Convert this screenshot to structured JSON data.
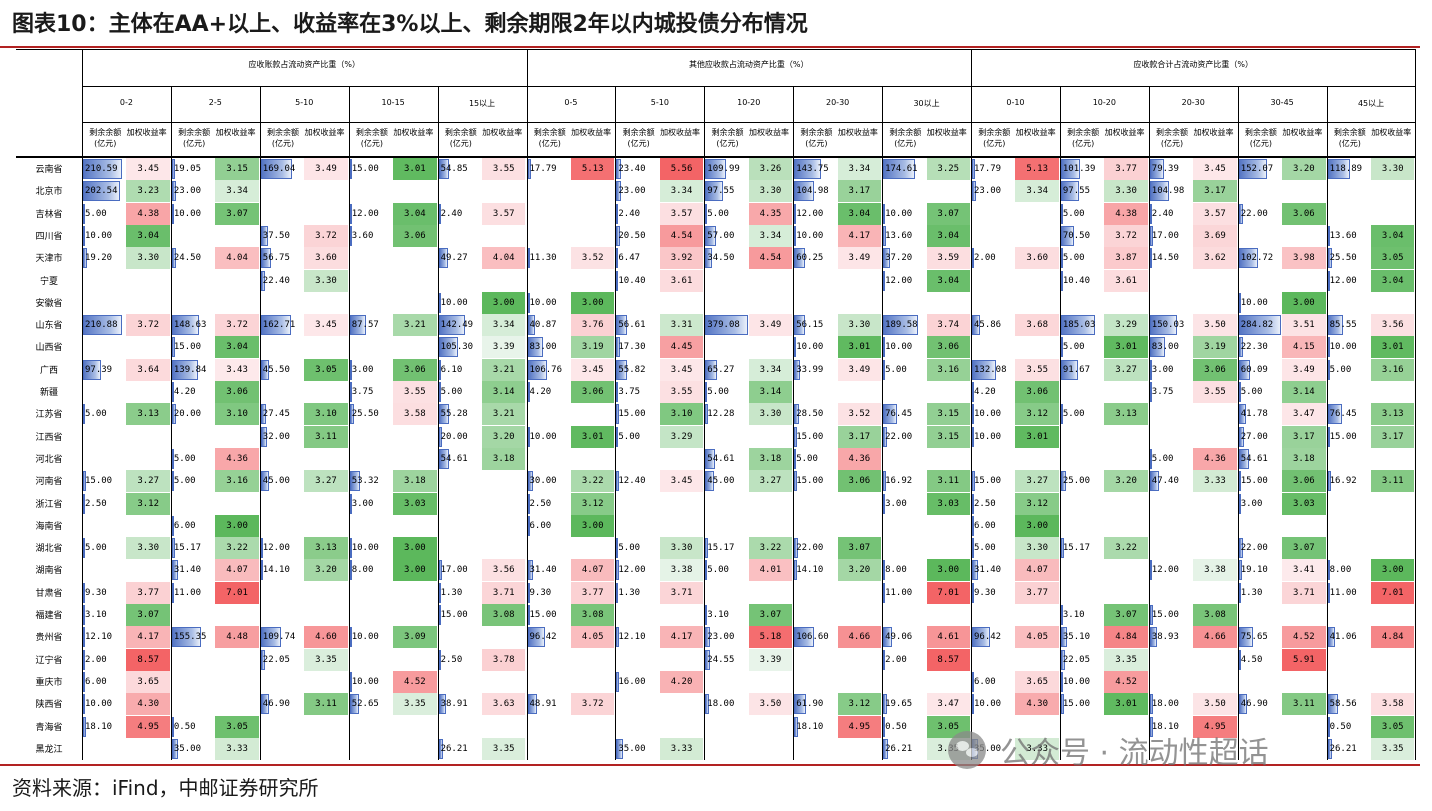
{
  "title": "图表10：主体在AA+以上、收益率在3%以上、剩余期限2年以内城投债分布情况",
  "source": "资料来源：iFind，中邮证券研究所",
  "watermark": "公众号 · 流动性超话",
  "colors": {
    "rule": "#b22222",
    "bar": "#5676c4",
    "green_max": "#5cb85c",
    "red_max": "#f36a6a"
  },
  "metric_labels": {
    "balance": "剩余余额(亿元)",
    "yield": "加权收益率"
  },
  "groups": [
    {
      "label": "应收账款占流动资产比重（%）",
      "bands": [
        "0-2",
        "2-5",
        "5-10",
        "10-15",
        "15以上"
      ]
    },
    {
      "label": "其他应收款占流动资产比重（%）",
      "bands": [
        "0-5",
        "5-10",
        "10-20",
        "20-30",
        "30以上"
      ]
    },
    {
      "label": "应收款合计占流动资产比重（%）",
      "bands": [
        "0-10",
        "10-20",
        "20-30",
        "30-45",
        "45以上"
      ]
    }
  ],
  "provinces": [
    "云南省",
    "北京市",
    "吉林省",
    "四川省",
    "天津市",
    "宁夏",
    "安徽省",
    "山东省",
    "山西省",
    "广西",
    "新疆",
    "江苏省",
    "江西省",
    "河北省",
    "河南省",
    "浙江省",
    "海南省",
    "湖北省",
    "湖南省",
    "甘肃省",
    "福建省",
    "贵州省",
    "辽宁省",
    "重庆市",
    "陕西省",
    "青海省",
    "黑龙江"
  ],
  "rows": [
    [
      [
        "210.59",
        "3.45"
      ],
      [
        "19.05",
        "3.15"
      ],
      [
        "169.04",
        "3.49"
      ],
      [
        "15.00",
        "3.01"
      ],
      [
        "54.85",
        "3.55"
      ],
      [
        "17.79",
        "5.13"
      ],
      [
        "23.40",
        "5.56"
      ],
      [
        "109.99",
        "3.26"
      ],
      [
        "143.75",
        "3.34"
      ],
      [
        "174.61",
        "3.25"
      ],
      [
        "17.79",
        "5.13"
      ],
      [
        "101.39",
        "3.77"
      ],
      [
        "79.39",
        "3.45"
      ],
      [
        "152.07",
        "3.20"
      ],
      [
        "118.89",
        "3.30"
      ]
    ],
    [
      [
        "202.54",
        "3.23"
      ],
      [
        "23.00",
        "3.34"
      ],
      null,
      null,
      null,
      null,
      [
        "23.00",
        "3.34"
      ],
      [
        "97.55",
        "3.30"
      ],
      [
        "104.98",
        "3.17"
      ],
      null,
      [
        "23.00",
        "3.34"
      ],
      [
        "97.55",
        "3.30"
      ],
      [
        "104.98",
        "3.17"
      ],
      null,
      null
    ],
    [
      [
        "5.00",
        "4.38"
      ],
      [
        "10.00",
        "3.07"
      ],
      null,
      [
        "12.00",
        "3.04"
      ],
      [
        "2.40",
        "3.57"
      ],
      null,
      [
        "2.40",
        "3.57"
      ],
      [
        "5.00",
        "4.35"
      ],
      [
        "12.00",
        "3.04"
      ],
      [
        "10.00",
        "3.07"
      ],
      null,
      [
        "5.00",
        "4.38"
      ],
      [
        "2.40",
        "3.57"
      ],
      [
        "22.00",
        "3.06"
      ],
      null
    ],
    [
      [
        "10.00",
        "3.04"
      ],
      null,
      [
        "37.50",
        "3.72"
      ],
      [
        "3.60",
        "3.06"
      ],
      null,
      null,
      [
        "20.50",
        "4.54"
      ],
      [
        "57.00",
        "3.34"
      ],
      [
        "10.00",
        "4.17"
      ],
      [
        "13.60",
        "3.04"
      ],
      null,
      [
        "70.50",
        "3.72"
      ],
      [
        "17.00",
        "3.69"
      ],
      null,
      [
        "13.60",
        "3.04"
      ]
    ],
    [
      [
        "19.20",
        "3.30"
      ],
      [
        "24.50",
        "4.04"
      ],
      [
        "56.75",
        "3.60"
      ],
      null,
      [
        "49.27",
        "4.04"
      ],
      [
        "11.30",
        "3.52"
      ],
      [
        "6.47",
        "3.92"
      ],
      [
        "34.50",
        "4.54"
      ],
      [
        "60.25",
        "3.49"
      ],
      [
        "37.20",
        "3.59"
      ],
      [
        "2.00",
        "3.60"
      ],
      [
        "5.00",
        "3.87"
      ],
      [
        "14.50",
        "3.62"
      ],
      [
        "102.72",
        "3.98"
      ],
      [
        "25.50",
        "3.05"
      ]
    ],
    [
      null,
      null,
      [
        "22.40",
        "3.30"
      ],
      null,
      null,
      null,
      [
        "10.40",
        "3.61"
      ],
      null,
      null,
      [
        "12.00",
        "3.04"
      ],
      null,
      [
        "10.40",
        "3.61"
      ],
      null,
      null,
      [
        "12.00",
        "3.04"
      ]
    ],
    [
      null,
      null,
      null,
      null,
      [
        "10.00",
        "3.00"
      ],
      [
        "10.00",
        "3.00"
      ],
      null,
      null,
      null,
      null,
      null,
      null,
      null,
      [
        "10.00",
        "3.00"
      ],
      null
    ],
    [
      [
        "210.88",
        "3.72"
      ],
      [
        "148.63",
        "3.72"
      ],
      [
        "162.71",
        "3.45"
      ],
      [
        "87.57",
        "3.21"
      ],
      [
        "142.49",
        "3.34"
      ],
      [
        "40.87",
        "3.76"
      ],
      [
        "56.61",
        "3.31"
      ],
      [
        "379.08",
        "3.49"
      ],
      [
        "56.15",
        "3.30"
      ],
      [
        "189.58",
        "3.74"
      ],
      [
        "45.86",
        "3.68"
      ],
      [
        "185.03",
        "3.29"
      ],
      [
        "150.03",
        "3.50"
      ],
      [
        "284.82",
        "3.51"
      ],
      [
        "85.55",
        "3.56"
      ]
    ],
    [
      null,
      [
        "15.00",
        "3.04"
      ],
      null,
      null,
      [
        "105.30",
        "3.39"
      ],
      [
        "83.00",
        "3.19"
      ],
      [
        "17.30",
        "4.45"
      ],
      null,
      [
        "10.00",
        "3.01"
      ],
      [
        "10.00",
        "3.06"
      ],
      null,
      [
        "5.00",
        "3.01"
      ],
      [
        "83.00",
        "3.19"
      ],
      [
        "22.30",
        "4.15"
      ],
      [
        "10.00",
        "3.01"
      ]
    ],
    [
      [
        "97.39",
        "3.64"
      ],
      [
        "139.84",
        "3.43"
      ],
      [
        "45.50",
        "3.05"
      ],
      [
        "3.00",
        "3.06"
      ],
      [
        "6.10",
        "3.21"
      ],
      [
        "106.76",
        "3.45"
      ],
      [
        "55.82",
        "3.45"
      ],
      [
        "65.27",
        "3.34"
      ],
      [
        "33.99",
        "3.49"
      ],
      [
        "5.00",
        "3.16"
      ],
      [
        "132.08",
        "3.55"
      ],
      [
        "91.67",
        "3.27"
      ],
      [
        "3.00",
        "3.06"
      ],
      [
        "60.09",
        "3.49"
      ],
      [
        "5.00",
        "3.16"
      ]
    ],
    [
      null,
      [
        "4.20",
        "3.06"
      ],
      null,
      [
        "3.75",
        "3.55"
      ],
      [
        "5.00",
        "3.14"
      ],
      [
        "4.20",
        "3.06"
      ],
      [
        "3.75",
        "3.55"
      ],
      [
        "5.00",
        "3.14"
      ],
      null,
      null,
      [
        "4.20",
        "3.06"
      ],
      null,
      [
        "3.75",
        "3.55"
      ],
      [
        "5.00",
        "3.14"
      ],
      null
    ],
    [
      [
        "5.00",
        "3.13"
      ],
      [
        "20.00",
        "3.10"
      ],
      [
        "27.45",
        "3.10"
      ],
      [
        "25.50",
        "3.58"
      ],
      [
        "55.28",
        "3.21"
      ],
      null,
      [
        "15.00",
        "3.10"
      ],
      [
        "12.28",
        "3.30"
      ],
      [
        "28.50",
        "3.52"
      ],
      [
        "76.45",
        "3.15"
      ],
      [
        "10.00",
        "3.12"
      ],
      [
        "5.00",
        "3.13"
      ],
      null,
      [
        "41.78",
        "3.47"
      ],
      [
        "76.45",
        "3.13"
      ]
    ],
    [
      null,
      null,
      [
        "32.00",
        "3.11"
      ],
      null,
      [
        "20.00",
        "3.20"
      ],
      [
        "10.00",
        "3.01"
      ],
      [
        "5.00",
        "3.29"
      ],
      null,
      [
        "15.00",
        "3.17"
      ],
      [
        "22.00",
        "3.15"
      ],
      [
        "10.00",
        "3.01"
      ],
      null,
      null,
      [
        "27.00",
        "3.17"
      ],
      [
        "15.00",
        "3.17"
      ]
    ],
    [
      null,
      [
        "5.00",
        "4.36"
      ],
      null,
      null,
      [
        "54.61",
        "3.18"
      ],
      null,
      null,
      [
        "54.61",
        "3.18"
      ],
      [
        "5.00",
        "4.36"
      ],
      null,
      null,
      null,
      [
        "5.00",
        "4.36"
      ],
      [
        "54.61",
        "3.18"
      ],
      null
    ],
    [
      [
        "15.00",
        "3.27"
      ],
      [
        "5.00",
        "3.16"
      ],
      [
        "45.00",
        "3.27"
      ],
      [
        "53.32",
        "3.18"
      ],
      null,
      [
        "30.00",
        "3.22"
      ],
      [
        "12.40",
        "3.45"
      ],
      [
        "45.00",
        "3.27"
      ],
      [
        "15.00",
        "3.06"
      ],
      [
        "16.92",
        "3.11"
      ],
      [
        "15.00",
        "3.27"
      ],
      [
        "25.00",
        "3.20"
      ],
      [
        "47.40",
        "3.33"
      ],
      [
        "15.00",
        "3.06"
      ],
      [
        "16.92",
        "3.11"
      ]
    ],
    [
      [
        "2.50",
        "3.12"
      ],
      null,
      null,
      [
        "3.00",
        "3.03"
      ],
      null,
      [
        "2.50",
        "3.12"
      ],
      null,
      null,
      null,
      [
        "3.00",
        "3.03"
      ],
      [
        "2.50",
        "3.12"
      ],
      null,
      null,
      [
        "3.00",
        "3.03"
      ],
      null
    ],
    [
      null,
      [
        "6.00",
        "3.00"
      ],
      null,
      null,
      null,
      [
        "6.00",
        "3.00"
      ],
      null,
      null,
      null,
      null,
      [
        "6.00",
        "3.00"
      ],
      null,
      null,
      null,
      null
    ],
    [
      [
        "5.00",
        "3.30"
      ],
      [
        "15.17",
        "3.22"
      ],
      [
        "12.00",
        "3.13"
      ],
      [
        "10.00",
        "3.00"
      ],
      null,
      null,
      [
        "5.00",
        "3.30"
      ],
      [
        "15.17",
        "3.22"
      ],
      [
        "22.00",
        "3.07"
      ],
      null,
      [
        "5.00",
        "3.30"
      ],
      [
        "15.17",
        "3.22"
      ],
      null,
      [
        "22.00",
        "3.07"
      ],
      null
    ],
    [
      null,
      [
        "31.40",
        "4.07"
      ],
      [
        "14.10",
        "3.20"
      ],
      [
        "8.00",
        "3.00"
      ],
      [
        "17.00",
        "3.56"
      ],
      [
        "31.40",
        "4.07"
      ],
      [
        "12.00",
        "3.38"
      ],
      [
        "5.00",
        "4.01"
      ],
      [
        "14.10",
        "3.20"
      ],
      [
        "8.00",
        "3.00"
      ],
      [
        "31.40",
        "4.07"
      ],
      null,
      [
        "12.00",
        "3.38"
      ],
      [
        "19.10",
        "3.41"
      ],
      [
        "8.00",
        "3.00"
      ]
    ],
    [
      [
        "9.30",
        "3.77"
      ],
      [
        "11.00",
        "7.01"
      ],
      null,
      null,
      [
        "1.30",
        "3.71"
      ],
      [
        "9.30",
        "3.77"
      ],
      [
        "1.30",
        "3.71"
      ],
      null,
      null,
      [
        "11.00",
        "7.01"
      ],
      [
        "9.30",
        "3.77"
      ],
      null,
      null,
      [
        "1.30",
        "3.71"
      ],
      [
        "11.00",
        "7.01"
      ]
    ],
    [
      [
        "3.10",
        "3.07"
      ],
      null,
      null,
      null,
      [
        "15.00",
        "3.08"
      ],
      [
        "15.00",
        "3.08"
      ],
      null,
      [
        "3.10",
        "3.07"
      ],
      null,
      null,
      null,
      [
        "3.10",
        "3.07"
      ],
      [
        "15.00",
        "3.08"
      ],
      null,
      null
    ],
    [
      [
        "12.10",
        "4.17"
      ],
      [
        "155.35",
        "4.48"
      ],
      [
        "109.74",
        "4.60"
      ],
      [
        "10.00",
        "3.09"
      ],
      null,
      [
        "96.42",
        "4.05"
      ],
      [
        "12.10",
        "4.17"
      ],
      [
        "23.00",
        "5.18"
      ],
      [
        "106.60",
        "4.66"
      ],
      [
        "49.06",
        "4.61"
      ],
      [
        "96.42",
        "4.05"
      ],
      [
        "35.10",
        "4.84"
      ],
      [
        "38.93",
        "4.66"
      ],
      [
        "75.65",
        "4.52"
      ],
      [
        "41.06",
        "4.84"
      ]
    ],
    [
      [
        "2.00",
        "8.57"
      ],
      null,
      [
        "22.05",
        "3.35"
      ],
      null,
      [
        "2.50",
        "3.78"
      ],
      null,
      null,
      [
        "24.55",
        "3.39"
      ],
      null,
      [
        "2.00",
        "8.57"
      ],
      null,
      [
        "22.05",
        "3.35"
      ],
      null,
      [
        "4.50",
        "5.91"
      ],
      null
    ],
    [
      [
        "6.00",
        "3.65"
      ],
      null,
      null,
      [
        "10.00",
        "4.52"
      ],
      null,
      null,
      [
        "16.00",
        "4.20"
      ],
      null,
      null,
      null,
      [
        "6.00",
        "3.65"
      ],
      [
        "10.00",
        "4.52"
      ],
      null,
      null,
      null
    ],
    [
      [
        "10.00",
        "4.30"
      ],
      null,
      [
        "46.90",
        "3.11"
      ],
      [
        "52.65",
        "3.35"
      ],
      [
        "38.91",
        "3.63"
      ],
      [
        "48.91",
        "3.72"
      ],
      null,
      [
        "18.00",
        "3.50"
      ],
      [
        "61.90",
        "3.12"
      ],
      [
        "19.65",
        "3.47"
      ],
      [
        "10.00",
        "4.30"
      ],
      [
        "15.00",
        "3.01"
      ],
      [
        "18.00",
        "3.50"
      ],
      [
        "46.90",
        "3.11"
      ],
      [
        "58.56",
        "3.58"
      ]
    ],
    [
      [
        "18.10",
        "4.95"
      ],
      [
        "0.50",
        "3.05"
      ],
      null,
      null,
      null,
      null,
      null,
      null,
      [
        "18.10",
        "4.95"
      ],
      [
        "0.50",
        "3.05"
      ],
      null,
      null,
      [
        "18.10",
        "4.95"
      ],
      null,
      [
        "0.50",
        "3.05"
      ]
    ],
    [
      null,
      [
        "35.00",
        "3.33"
      ],
      null,
      null,
      [
        "26.21",
        "3.35"
      ],
      null,
      [
        "35.00",
        "3.33"
      ],
      null,
      null,
      [
        "26.21",
        "3.35"
      ],
      [
        "35.00",
        "3.33"
      ],
      null,
      null,
      null,
      [
        "26.21",
        "3.35"
      ]
    ]
  ]
}
